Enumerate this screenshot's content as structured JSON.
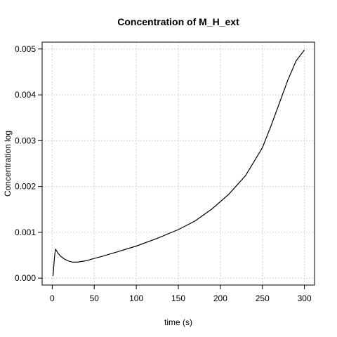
{
  "chart_data": {
    "type": "line",
    "title": "Concentration of M_H_ext",
    "xlabel": "time (s)",
    "ylabel": "Concentration log",
    "xlim": [
      -12,
      312
    ],
    "ylim": [
      -0.00015,
      0.00515
    ],
    "x_ticks": [
      0,
      50,
      100,
      150,
      200,
      250,
      300
    ],
    "x_tick_labels": [
      "0",
      "50",
      "100",
      "150",
      "200",
      "250",
      "300"
    ],
    "y_ticks": [
      0.0,
      0.001,
      0.002,
      0.003,
      0.004,
      0.005
    ],
    "y_tick_labels": [
      "0.000",
      "0.001",
      "0.002",
      "0.003",
      "0.004",
      "0.005"
    ],
    "grid": true,
    "series": [
      {
        "color": "#000000",
        "x": [
          1,
          2,
          3,
          4,
          5,
          7,
          10,
          15,
          20,
          25,
          30,
          40,
          50,
          60,
          75,
          100,
          125,
          150,
          170,
          190,
          210,
          230,
          250,
          260,
          270,
          280,
          290,
          300
        ],
        "y": [
          5e-05,
          0.0003,
          0.00052,
          0.00063,
          0.0006,
          0.00054,
          0.00048,
          0.00041,
          0.00037,
          0.00035,
          0.00035,
          0.00038,
          0.00043,
          0.00048,
          0.00056,
          0.0007,
          0.00087,
          0.00106,
          0.00125,
          0.00151,
          0.00183,
          0.00224,
          0.00285,
          0.00331,
          0.00381,
          0.00431,
          0.00474,
          0.00498
        ]
      }
    ]
  }
}
